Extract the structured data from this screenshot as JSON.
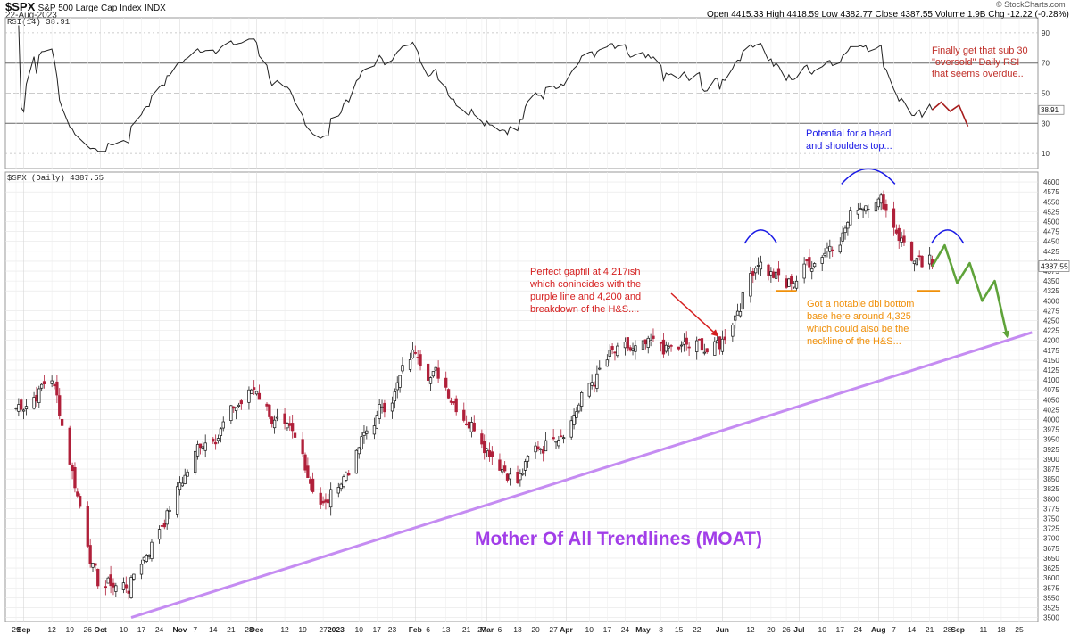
{
  "header": {
    "symbol": "$SPX",
    "name": "S&P 500 Large Cap Index",
    "exchange": "INDX",
    "date": "22-Aug-2023",
    "ohlc_text": "Open 4415.33  High 4418.59  Low 4382.77  Close 4387.55  Volume 1.9B  Chg -12.22 (-0.28%)",
    "credit": "© StockCharts.com"
  },
  "colors": {
    "up": "#111111",
    "down": "#b0203a",
    "trendline": "#c58cf2",
    "purple_text": "#a23ee8",
    "red_text": "#c0302a",
    "orange_text": "#f0900a",
    "blue_text": "#1a1ae6",
    "green_arrow": "#5fa33a",
    "darkred_arrow": "#a61c1c"
  },
  "rsi_panel": {
    "label": "RSI(14) 38.91",
    "ticks": [
      "90",
      "70",
      "50",
      "30",
      "10"
    ],
    "last_badge": "38.91"
  },
  "price_panel": {
    "label": "$SPX (Daily) 4387.55",
    "ticks": [
      "4600",
      "4575",
      "4550",
      "4525",
      "4500",
      "4475",
      "4450",
      "4425",
      "4400",
      "4375",
      "4350",
      "4325",
      "4300",
      "4275",
      "4250",
      "4225",
      "4200",
      "4175",
      "4150",
      "4125",
      "4100",
      "4075",
      "4050",
      "4025",
      "4000",
      "3975",
      "3950",
      "3925",
      "3900",
      "3875",
      "3850",
      "3825",
      "3800",
      "3775",
      "3750",
      "3725",
      "3700",
      "3675",
      "3650",
      "3625",
      "3600",
      "3575",
      "3550",
      "3525",
      "3500"
    ],
    "last_badge": "4387.55"
  },
  "annotations": {
    "rsi_note": [
      "Finally get that sub 30",
      "\"oversold\" Daily RSI",
      "that seems overdue.."
    ],
    "hs_note": [
      "Potential for a head",
      "and shoulders top..."
    ],
    "gap_note": [
      "Perfect gapfill at 4,217ish",
      "which conincides with the",
      "purple line and 4,200 and",
      "breakdown of the H&S...."
    ],
    "dbl_note": [
      "Got a notable dbl bottom",
      "base here around 4,325",
      "which could also be the",
      "neckline of the H&S..."
    ],
    "moat": "Mother Of All Trendlines (MOAT)"
  },
  "chart_data": {
    "type": "candlestick",
    "title": "$SPX S&P 500 Large Cap Index INDX",
    "price_range": [
      3490,
      4625
    ],
    "rsi_range": [
      0,
      100
    ],
    "x_labels": [
      "29",
      "Sep",
      "12",
      "19",
      "26",
      "Oct",
      "10",
      "17",
      "24",
      "Nov",
      "7",
      "14",
      "21",
      "28",
      "Dec",
      "12",
      "19",
      "27",
      "2023",
      "10",
      "17",
      "23",
      "Feb",
      "6",
      "13",
      "21",
      "27",
      "Mar",
      "6",
      "13",
      "20",
      "27",
      "Apr",
      "10",
      "17",
      "24",
      "May",
      "8",
      "15",
      "22",
      "Jun",
      "12",
      "20",
      "26",
      "Jul",
      "10",
      "17",
      "24",
      "Aug",
      "7",
      "14",
      "21",
      "28",
      "Sep",
      "11",
      "18",
      "25"
    ],
    "close_path": [
      [
        "Aug 29 2022",
        4030
      ],
      [
        "Sep 12 2022",
        4110
      ],
      [
        "Sep 30 2022",
        3585
      ],
      [
        "Oct 12 2022",
        3580
      ],
      [
        "Nov 10 2022",
        3950
      ],
      [
        "Dec 1 2022",
        4080
      ],
      [
        "Dec 28 2022",
        3785
      ],
      [
        "Feb 2 2023",
        4180
      ],
      [
        "Mar 13 2023",
        3855
      ],
      [
        "Apr 18 2023",
        4150
      ],
      [
        "May 31 2023",
        4180
      ],
      [
        "Jun 15 2023",
        4420
      ],
      [
        "Jun 26 2023",
        4330
      ],
      [
        "Jul 31 2023",
        4590
      ],
      [
        "Aug 18 2023",
        4370
      ],
      [
        "Aug 22 2023",
        4387.55
      ]
    ],
    "trendline_moat": [
      [
        "Oct 13 2022",
        3500
      ],
      [
        "Sep 30 2023",
        4220
      ]
    ],
    "projection_green": [
      4387,
      4440,
      4345,
      4395,
      4300,
      4350,
      4210
    ],
    "rsi_projection": [
      39,
      44,
      38,
      42,
      28
    ],
    "rsi_last": 38.91,
    "levels": {
      "gapfill": 4217,
      "double_bottom": 4325
    }
  }
}
